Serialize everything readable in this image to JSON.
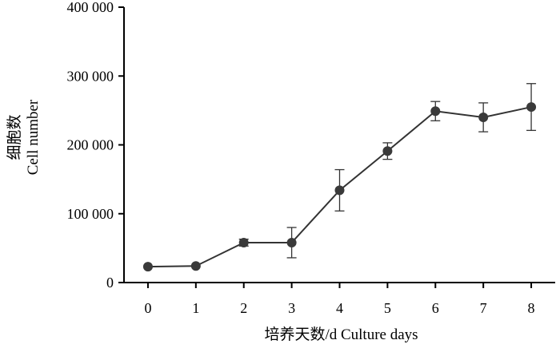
{
  "chart_data": {
    "type": "line",
    "xlabel": "培养天数/d Culture days",
    "ylabel_line1": "细胞数",
    "ylabel_line2": "Cell number",
    "x_ticks": [
      "0",
      "1",
      "2",
      "3",
      "4",
      "5",
      "6",
      "7",
      "8"
    ],
    "y_ticks": [
      {
        "value": 0,
        "label": "0"
      },
      {
        "value": 100000,
        "label": "100 000"
      },
      {
        "value": 200000,
        "label": "200 000"
      },
      {
        "value": 300000,
        "label": "300 000"
      },
      {
        "value": 400000,
        "label": "400 000"
      }
    ],
    "xlim": [
      -0.5,
      8.5
    ],
    "ylim": [
      0,
      400000
    ],
    "series": [
      {
        "x": [
          0,
          1,
          2,
          3,
          4,
          5,
          6,
          7,
          8
        ],
        "y": [
          23000,
          24000,
          58000,
          58000,
          134000,
          191000,
          249000,
          240000,
          255000
        ],
        "err": [
          0,
          0,
          5000,
          22000,
          30000,
          12000,
          14000,
          21000,
          34000
        ]
      }
    ],
    "grid": false,
    "colors": {
      "line": "#333333",
      "marker": "#3a3a3a",
      "axis": "#000000"
    }
  }
}
